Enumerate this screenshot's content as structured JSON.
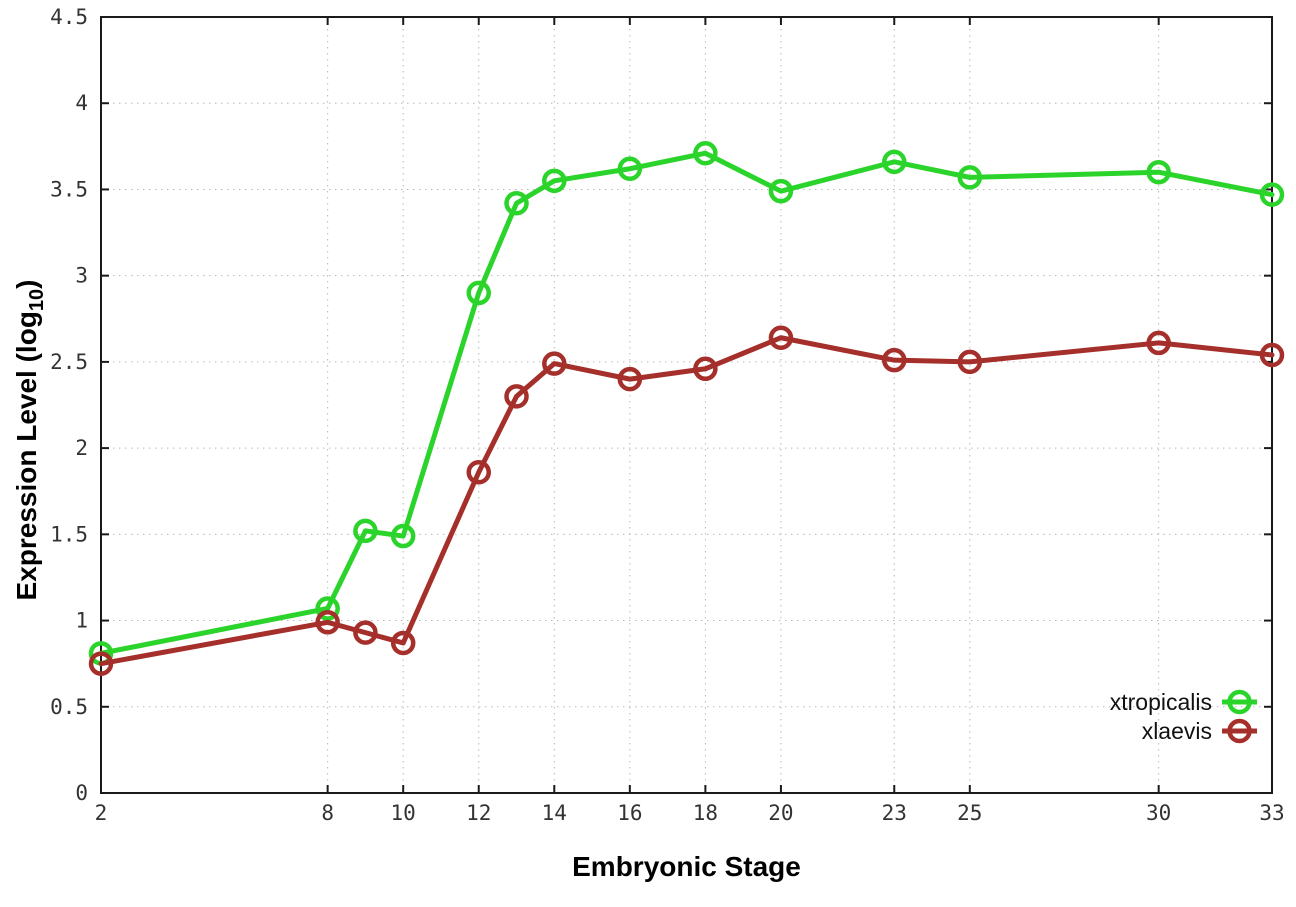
{
  "chart_data": {
    "type": "line",
    "title": "",
    "xlabel": "Embryonic Stage",
    "ylabel": "Expression Level (log10)",
    "ylabel_parts": {
      "main": "Expression Level (log",
      "sub": "10",
      "end": ")"
    },
    "x": [
      2,
      8,
      9,
      10,
      12,
      13,
      14,
      16,
      18,
      20,
      23,
      25,
      30,
      33
    ],
    "series": [
      {
        "name": "xtropicalis",
        "color": "#2bd42b",
        "values": [
          0.81,
          1.07,
          1.52,
          1.49,
          2.9,
          3.42,
          3.55,
          3.62,
          3.71,
          3.49,
          3.66,
          3.57,
          3.6,
          3.47
        ]
      },
      {
        "name": "xlaevis",
        "color": "#a52f2a",
        "values": [
          0.75,
          0.99,
          0.93,
          0.87,
          1.86,
          2.3,
          2.49,
          2.4,
          2.46,
          2.64,
          2.51,
          2.5,
          2.61,
          2.54
        ]
      }
    ],
    "xlim": [
      2,
      33
    ],
    "ylim": [
      0,
      4.5
    ],
    "xticks": [
      2,
      8,
      10,
      12,
      14,
      16,
      18,
      20,
      23,
      25,
      30,
      33
    ],
    "xtick_labels": [
      "2",
      "8",
      "10",
      "12",
      "14",
      "16",
      "18",
      "20",
      "23",
      "25",
      "30",
      "33"
    ],
    "yticks": [
      0,
      0.5,
      1,
      1.5,
      2,
      2.5,
      3,
      3.5,
      4,
      4.5
    ],
    "ytick_labels": [
      "0",
      "0.5",
      "1",
      "1.5",
      "2",
      "2.5",
      "3",
      "3.5",
      "4",
      "4.5"
    ],
    "grid": true,
    "grid_style": "dotted",
    "marker": "open-circle",
    "legend_position": "bottom-right",
    "legend": [
      "xtropicalis",
      "xlaevis"
    ]
  },
  "colors": {
    "background": "#ffffff",
    "border": "#1a1a1a",
    "grid": "#b8b8b8",
    "tick_label": "#333333",
    "axis_title": "#000000",
    "legend_text": "#111111"
  }
}
